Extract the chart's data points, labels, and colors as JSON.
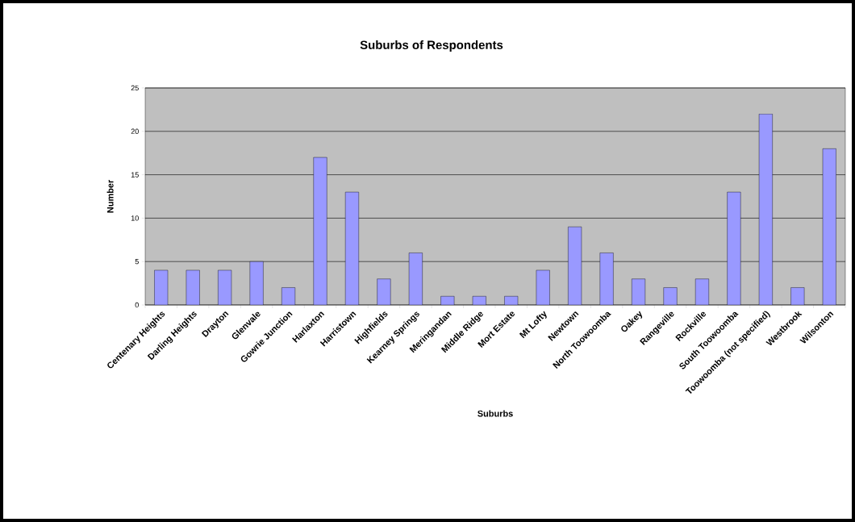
{
  "chart_data": {
    "type": "bar",
    "title": "Suburbs of Respondents",
    "xlabel": "Suburbs",
    "ylabel": "Number",
    "categories": [
      "Centenary Heights",
      "Darling Heights",
      "Drayton",
      "Glenvale",
      "Gowrie Junction",
      "Harlaxton",
      "Harristown",
      "Highfields",
      "Kearney Springs",
      "Meringandan",
      "Middle Ridge",
      "Mort Estate",
      "Mt Lofty",
      "Newtown",
      "North Toowoomba",
      "Oakey",
      "Rangeville",
      "Rockville",
      "South Toowoomba",
      "Toowoomba (not specified)",
      "Westbrook",
      "Wilsonton"
    ],
    "values": [
      4,
      4,
      4,
      5,
      2,
      17,
      13,
      3,
      6,
      1,
      1,
      1,
      4,
      9,
      6,
      3,
      2,
      3,
      13,
      22,
      2,
      18
    ],
    "color": "#9999ff",
    "ylim": [
      0,
      25
    ],
    "yticks": [
      0,
      5,
      10,
      15,
      20,
      25
    ],
    "grid": "y"
  }
}
